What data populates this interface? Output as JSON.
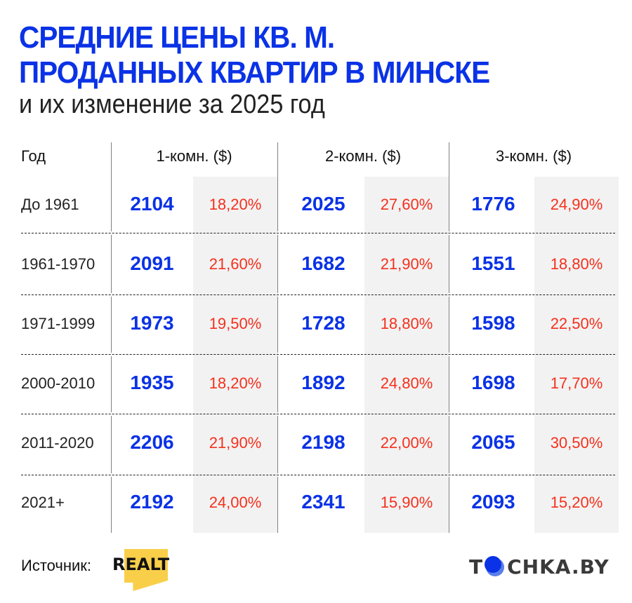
{
  "header": {
    "title_line1": "СРЕДНИЕ ЦЕНЫ КВ. М.",
    "title_line2": "ПРОДАННЫХ КВАРТИР В МИНСКЕ",
    "subtitle": "и их изменение за 2025 год"
  },
  "table": {
    "col_year": "Год",
    "columns": [
      "1-комн. ($)",
      "2-комн. ($)",
      "3-комн. ($)"
    ],
    "rows": [
      {
        "year": "До 1961",
        "c1": "2104",
        "p1": "18,20%",
        "c2": "2025",
        "p2": "27,60%",
        "c3": "1776",
        "p3": "24,90%"
      },
      {
        "year": "1961-1970",
        "c1": "2091",
        "p1": "21,60%",
        "c2": "1682",
        "p2": "21,90%",
        "c3": "1551",
        "p3": "18,80%"
      },
      {
        "year": "1971-1999",
        "c1": "1973",
        "p1": "19,50%",
        "c2": "1728",
        "p2": "18,80%",
        "c3": "1598",
        "p3": "22,50%"
      },
      {
        "year": "2000-2010",
        "c1": "1935",
        "p1": "18,20%",
        "c2": "1892",
        "p2": "24,80%",
        "c3": "1698",
        "p3": "17,70%"
      },
      {
        "year": "2011-2020",
        "c1": "2206",
        "p1": "21,90%",
        "c2": "2198",
        "p2": "22,00%",
        "c3": "2065",
        "p3": "30,50%"
      },
      {
        "year": "2021+",
        "c1": "2192",
        "p1": "24,00%",
        "c2": "2341",
        "p2": "15,90%",
        "c3": "2093",
        "p3": "15,20%"
      }
    ]
  },
  "footer": {
    "source_label": "Источник:",
    "source_logo": "REALT",
    "brand_pre": "T",
    "brand_post": "CHKA.BY"
  },
  "colors": {
    "title_blue": "#0a32e6",
    "value_blue": "#0a32e6",
    "pct_red": "#f5301c",
    "cell_grey": "#f2f2f2",
    "realt_yellow": "#f9cf4a"
  },
  "chart_data": {
    "type": "table",
    "title": "Средние цены кв. м. проданных квартир в Минске",
    "subtitle": "и их изменение за 2025 год",
    "categories": [
      "До 1961",
      "1961-1970",
      "1971-1999",
      "2000-2010",
      "2011-2020",
      "2021+"
    ],
    "series": [
      {
        "name": "1-комн. ($)",
        "values": [
          2104,
          2091,
          1973,
          1935,
          2206,
          2192
        ],
        "change_pct": [
          18.2,
          21.6,
          19.5,
          18.2,
          21.9,
          24.0
        ]
      },
      {
        "name": "2-комн. ($)",
        "values": [
          2025,
          1682,
          1728,
          1892,
          2198,
          2341
        ],
        "change_pct": [
          27.6,
          21.9,
          18.8,
          24.8,
          22.0,
          15.9
        ]
      },
      {
        "name": "3-комн. ($)",
        "values": [
          1776,
          1551,
          1598,
          1698,
          2065,
          2093
        ],
        "change_pct": [
          24.9,
          18.8,
          22.5,
          17.7,
          30.5,
          15.2
        ]
      }
    ],
    "source": "Realt"
  }
}
